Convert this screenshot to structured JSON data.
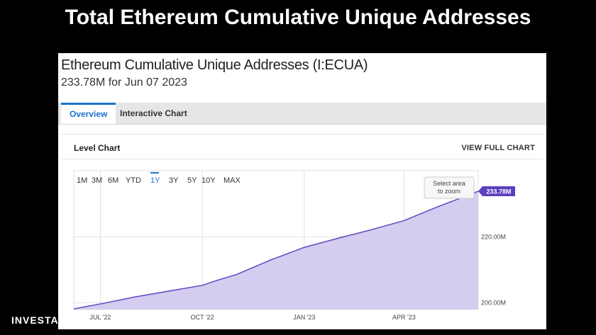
{
  "slide": {
    "title": "Total Ethereum Cumulative Unique Addresses",
    "brand": "INVESTA"
  },
  "card": {
    "title": "Ethereum Cumulative Unique Addresses (I:ECUA)",
    "subtitle": "233.78M for Jun 07 2023"
  },
  "tabs": [
    {
      "label": "Overview",
      "active": true
    },
    {
      "label": "Interactive Chart",
      "active": false
    }
  ],
  "panel": {
    "title": "Level Chart",
    "view_full": "VIEW FULL CHART",
    "zoom_hint_line1": "Select area",
    "zoom_hint_line2": "to zoom"
  },
  "range_buttons": [
    {
      "label": "1M",
      "active": false
    },
    {
      "label": "3M",
      "active": false
    },
    {
      "label": "6M",
      "active": false
    },
    {
      "label": "YTD",
      "active": false
    },
    {
      "label": "1Y",
      "active": true
    },
    {
      "label": "3Y",
      "active": false
    },
    {
      "label": "5Y",
      "active": false
    },
    {
      "label": "10Y",
      "active": false
    },
    {
      "label": "MAX",
      "active": false
    }
  ],
  "colors": {
    "accent": "#1a73c8",
    "line": "#6a4fc4",
    "area": "#d4cdf0",
    "label_bg": "#5b3fbf"
  },
  "chart_data": {
    "type": "area",
    "title": "",
    "xlabel": "",
    "ylabel": "",
    "x_ticks": [
      "JUL '22",
      "OCT '22",
      "JAN '23",
      "APR '23"
    ],
    "x_tick_dates": [
      "2022-07-01",
      "2022-10-01",
      "2023-01-01",
      "2023-04-01"
    ],
    "y_ticks": [
      {
        "value": 200,
        "label": "200.00M"
      },
      {
        "value": 220,
        "label": "220.00M"
      }
    ],
    "xlim": [
      "2022-06-07",
      "2023-06-07"
    ],
    "ylim": [
      198,
      240
    ],
    "last_value_label": "233.78M",
    "series": [
      {
        "values": [
          {
            "x": "2022-06-07",
            "y": 198.2
          },
          {
            "x": "2022-07-01",
            "y": 199.7
          },
          {
            "x": "2022-08-01",
            "y": 201.8
          },
          {
            "x": "2022-09-01",
            "y": 203.6
          },
          {
            "x": "2022-10-01",
            "y": 205.3
          },
          {
            "x": "2022-10-15",
            "y": 206.9
          },
          {
            "x": "2022-11-01",
            "y": 208.6
          },
          {
            "x": "2022-12-01",
            "y": 212.9
          },
          {
            "x": "2023-01-01",
            "y": 216.8
          },
          {
            "x": "2023-02-01",
            "y": 219.6
          },
          {
            "x": "2023-03-01",
            "y": 222.0
          },
          {
            "x": "2023-04-01",
            "y": 224.9
          },
          {
            "x": "2023-05-01",
            "y": 229.0
          },
          {
            "x": "2023-06-07",
            "y": 233.78
          }
        ]
      }
    ]
  }
}
